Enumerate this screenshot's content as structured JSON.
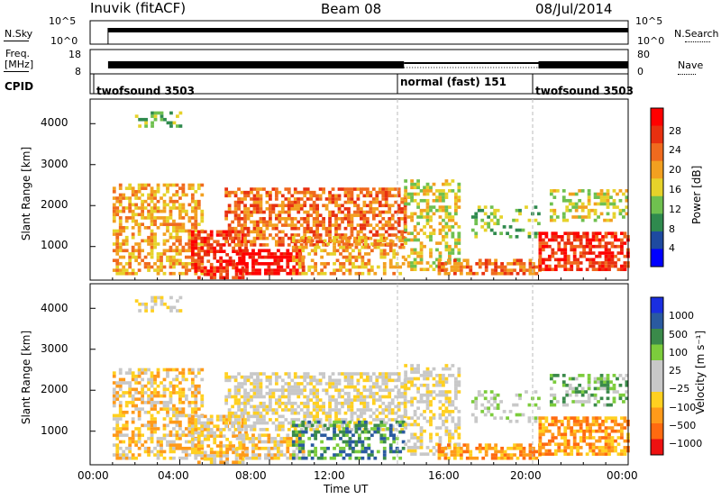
{
  "header": {
    "station": "Inuvik (fitACF)",
    "beam": "Beam 08",
    "date": "08/Jul/2014"
  },
  "status_panel": {
    "nsky_label": "N.Sky",
    "nsearch_label": "N.Search",
    "nsky_ticks": [
      "10^5",
      "10^0"
    ],
    "nsearch_ticks": [
      "10^5",
      "10^0"
    ],
    "freq_label_line1": "Freq.",
    "freq_label_line2": "[MHz]",
    "freq_ticks": [
      "18",
      "8"
    ],
    "nave_label": "Nave",
    "nave_ticks": [
      "80",
      "0"
    ],
    "cpid_label": "CPID",
    "cpid_segments": [
      {
        "name": "twofsound 3503",
        "start_hour": 0.8,
        "end_hour": 14.0
      },
      {
        "name": "normal (fast) 151",
        "start_hour": 14.0,
        "end_hour": 20.0
      },
      {
        "name": "twofsound 3503",
        "start_hour": 20.0,
        "end_hour": 24.0
      }
    ]
  },
  "colors": {
    "power_scale": [
      "#0000ff",
      "#1e4aa0",
      "#2f8a4e",
      "#6fc04f",
      "#e6d22a",
      "#f2a020",
      "#f06a1e",
      "#e83010",
      "#ff0000"
    ],
    "velocity_scale": [
      "#ee1111",
      "#ff6a10",
      "#ff9a1a",
      "#ffd020",
      "#c8c8c8",
      "#c8c8c8",
      "#7ccc3c",
      "#3a8a4a",
      "#2a5aa0",
      "#1a2ee0"
    ]
  },
  "chart_data": [
    {
      "type": "heatmap",
      "panel": "power",
      "ylabel": "Slant Range [km]",
      "yticks": [
        "1000",
        "2000",
        "3000",
        "4000"
      ],
      "ylim": [
        180,
        4600
      ],
      "xlim": [
        0,
        24
      ],
      "colorbar_label": "Power [dB]",
      "colorbar_ticks": [
        "4",
        "8",
        "12",
        "16",
        "20",
        "24",
        "28"
      ],
      "colorbar_range": [
        0,
        32
      ]
    },
    {
      "type": "heatmap",
      "panel": "velocity",
      "ylabel": "Slant Range [km]",
      "yticks": [
        "1000",
        "2000",
        "3000",
        "4000"
      ],
      "ylim": [
        180,
        4600
      ],
      "xlim": [
        0,
        24
      ],
      "xticks": [
        "00:00",
        "04:00",
        "08:00",
        "12:00",
        "16:00",
        "20:00",
        "00:00"
      ],
      "xlabel": "Time UT",
      "colorbar_label": "Velocity [m s⁻¹]",
      "colorbar_ticks": [
        "1000",
        "500",
        "100",
        "25",
        "−25",
        "−100",
        "−500",
        "−1000"
      ]
    }
  ]
}
